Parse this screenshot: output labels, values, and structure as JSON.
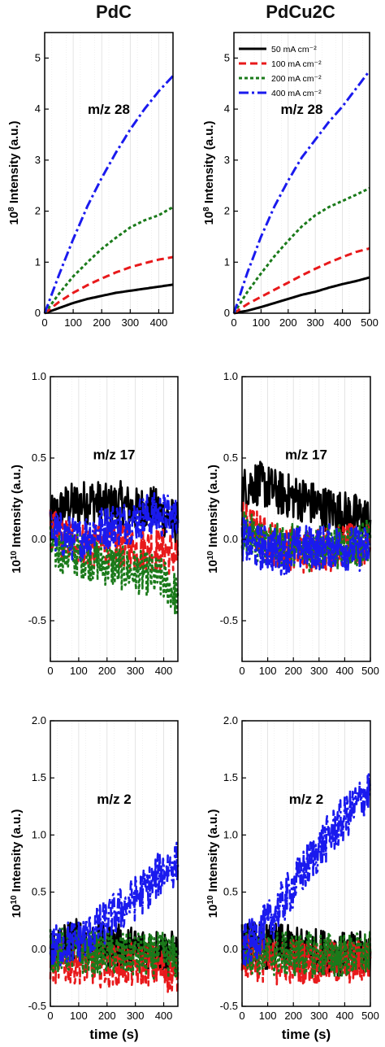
{
  "columns": [
    "PdC",
    "PdCu2C"
  ],
  "colors": {
    "50 mA cm⁻²": "#000000",
    "100 mA cm⁻²": "#e8191b",
    "200 mA cm⁻²": "#1a7a1a",
    "400 mA cm⁻²": "#1a1aee"
  },
  "chart_data": [
    {
      "type": "line",
      "panel": "PdC m/z 28",
      "annotation": "m/z 28",
      "ylabel": "10^8 Intensity (a.u.)",
      "xlabel": "",
      "xlim": [
        0,
        450
      ],
      "ylim": [
        0,
        5.5
      ],
      "xticks": [
        0,
        100,
        200,
        300,
        400
      ],
      "yticks": [
        0,
        1,
        2,
        3,
        4,
        5
      ],
      "yticklabels": [
        "0",
        "1",
        "2",
        "3",
        "4",
        "5"
      ],
      "series": [
        {
          "name": "50 mA cm⁻²",
          "style": "solid",
          "x": [
            0,
            50,
            100,
            150,
            200,
            250,
            300,
            350,
            400,
            450
          ],
          "y": [
            0,
            0.1,
            0.2,
            0.28,
            0.34,
            0.4,
            0.44,
            0.48,
            0.52,
            0.56
          ]
        },
        {
          "name": "100 mA cm⁻²",
          "style": "dash",
          "x": [
            0,
            50,
            100,
            150,
            200,
            250,
            300,
            350,
            400,
            450
          ],
          "y": [
            0,
            0.22,
            0.4,
            0.55,
            0.68,
            0.8,
            0.9,
            0.98,
            1.05,
            1.1
          ]
        },
        {
          "name": "200 mA cm⁻²",
          "style": "dot",
          "x": [
            0,
            50,
            100,
            150,
            200,
            250,
            300,
            350,
            400,
            450
          ],
          "y": [
            0,
            0.38,
            0.72,
            1.0,
            1.26,
            1.48,
            1.68,
            1.82,
            1.92,
            2.08
          ]
        },
        {
          "name": "400 mA cm⁻²",
          "style": "dashdot",
          "x": [
            0,
            50,
            100,
            150,
            200,
            250,
            300,
            350,
            400,
            450
          ],
          "y": [
            0,
            0.75,
            1.45,
            2.1,
            2.65,
            3.15,
            3.6,
            4.0,
            4.35,
            4.65
          ]
        }
      ]
    },
    {
      "type": "line",
      "panel": "PdCu2C m/z 28",
      "annotation": "m/z 28",
      "ylabel": "10^8 Intensity (a.u.)",
      "xlabel": "",
      "xlim": [
        0,
        500
      ],
      "ylim": [
        0,
        5.5
      ],
      "xticks": [
        0,
        100,
        200,
        300,
        400,
        500
      ],
      "yticks": [
        0,
        1,
        2,
        3,
        4,
        5
      ],
      "yticklabels": [
        "0",
        "1",
        "2",
        "3",
        "4",
        "5"
      ],
      "legend": {
        "position": "top-left",
        "entries": [
          "50 mA cm⁻²",
          "100 mA cm⁻²",
          "200 mA cm⁻²",
          "400 mA cm⁻²"
        ]
      },
      "series": [
        {
          "name": "50 mA cm⁻²",
          "style": "solid",
          "x": [
            0,
            50,
            100,
            150,
            200,
            250,
            300,
            350,
            400,
            450,
            500
          ],
          "y": [
            0,
            0.05,
            0.12,
            0.2,
            0.28,
            0.36,
            0.42,
            0.5,
            0.57,
            0.63,
            0.7
          ]
        },
        {
          "name": "100 mA cm⁻²",
          "style": "dash",
          "x": [
            0,
            50,
            100,
            150,
            200,
            250,
            300,
            350,
            400,
            450,
            500
          ],
          "y": [
            0,
            0.18,
            0.32,
            0.46,
            0.6,
            0.74,
            0.87,
            0.99,
            1.1,
            1.2,
            1.27
          ]
        },
        {
          "name": "200 mA cm⁻²",
          "style": "dot",
          "x": [
            0,
            50,
            100,
            150,
            200,
            250,
            300,
            350,
            400,
            450,
            500
          ],
          "y": [
            0,
            0.42,
            0.78,
            1.12,
            1.42,
            1.7,
            1.92,
            2.08,
            2.2,
            2.32,
            2.45
          ]
        },
        {
          "name": "400 mA cm⁻²",
          "style": "dashdot",
          "x": [
            0,
            50,
            100,
            150,
            200,
            250,
            300,
            350,
            400,
            450,
            500
          ],
          "y": [
            0,
            0.8,
            1.5,
            2.1,
            2.6,
            3.05,
            3.4,
            3.75,
            4.05,
            4.4,
            4.75
          ]
        }
      ]
    },
    {
      "type": "line",
      "panel": "PdC m/z 17",
      "annotation": "m/z 17",
      "ylabel": "10^10 Intensity (a.u.)",
      "xlabel": "",
      "xlim": [
        0,
        450
      ],
      "ylim": [
        -0.75,
        1.0
      ],
      "xticks": [
        0,
        100,
        200,
        300,
        400
      ],
      "yticks": [
        -0.5,
        0,
        0.5,
        1.0
      ],
      "yticklabels": [
        "-0.5",
        "0.0",
        "0.5",
        "1.0"
      ],
      "series": [
        {
          "name": "50 mA cm⁻²",
          "style": "solid",
          "noisy": true,
          "x": [
            0,
            50,
            100,
            150,
            200,
            250,
            300,
            350,
            400,
            450
          ],
          "y": [
            0.12,
            0.2,
            0.22,
            0.24,
            0.2,
            0.22,
            0.18,
            0.2,
            0.15,
            0.1
          ]
        },
        {
          "name": "100 mA cm⁻²",
          "style": "dash",
          "noisy": true,
          "x": [
            0,
            50,
            100,
            150,
            200,
            250,
            300,
            350,
            400,
            450
          ],
          "y": [
            0.05,
            0.0,
            -0.02,
            -0.05,
            -0.03,
            -0.04,
            -0.06,
            -0.05,
            -0.07,
            -0.1
          ]
        },
        {
          "name": "200 mA cm⁻²",
          "style": "dot",
          "noisy": true,
          "x": [
            0,
            50,
            100,
            150,
            200,
            250,
            300,
            350,
            400,
            450
          ],
          "y": [
            -0.05,
            -0.08,
            -0.1,
            -0.12,
            -0.15,
            -0.18,
            -0.2,
            -0.22,
            -0.25,
            -0.35
          ]
        },
        {
          "name": "400 mA cm⁻²",
          "style": "dashdot",
          "noisy": true,
          "x": [
            0,
            50,
            100,
            150,
            200,
            250,
            300,
            350,
            400,
            450
          ],
          "y": [
            0.05,
            0.02,
            0.0,
            0.05,
            0.08,
            0.1,
            0.12,
            0.15,
            0.15,
            0.12
          ]
        }
      ]
    },
    {
      "type": "line",
      "panel": "PdCu2C m/z 17",
      "annotation": "m/z 17",
      "ylabel": "10^10 Intensity (a.u.)",
      "xlabel": "",
      "xlim": [
        0,
        500
      ],
      "ylim": [
        -0.75,
        1.0
      ],
      "xticks": [
        0,
        100,
        200,
        300,
        400,
        500
      ],
      "yticks": [
        -0.5,
        0,
        0.5,
        1.0
      ],
      "yticklabels": [
        "-0.5",
        "0.0",
        "0.5",
        "1.0"
      ],
      "series": [
        {
          "name": "50 mA cm⁻²",
          "style": "solid",
          "noisy": true,
          "x": [
            0,
            50,
            100,
            150,
            200,
            250,
            300,
            350,
            400,
            450,
            500
          ],
          "y": [
            0.3,
            0.35,
            0.32,
            0.28,
            0.26,
            0.24,
            0.2,
            0.18,
            0.16,
            0.14,
            0.12
          ]
        },
        {
          "name": "100 mA cm⁻²",
          "style": "dash",
          "noisy": true,
          "x": [
            0,
            50,
            100,
            150,
            200,
            250,
            300,
            350,
            400,
            450,
            500
          ],
          "y": [
            0.1,
            0.05,
            0.0,
            -0.05,
            -0.05,
            -0.08,
            -0.05,
            -0.06,
            -0.04,
            -0.05,
            -0.03
          ]
        },
        {
          "name": "200 mA cm⁻²",
          "style": "dot",
          "noisy": true,
          "x": [
            0,
            50,
            100,
            150,
            200,
            250,
            300,
            350,
            400,
            450,
            500
          ],
          "y": [
            0.05,
            0.0,
            -0.02,
            -0.05,
            -0.04,
            -0.06,
            -0.05,
            -0.04,
            -0.05,
            -0.03,
            0.0
          ]
        },
        {
          "name": "400 mA cm⁻²",
          "style": "dashdot",
          "noisy": true,
          "x": [
            0,
            50,
            100,
            150,
            200,
            250,
            300,
            350,
            400,
            450,
            500
          ],
          "y": [
            0.0,
            -0.05,
            -0.05,
            -0.08,
            -0.06,
            -0.05,
            -0.05,
            -0.04,
            -0.05,
            -0.06,
            -0.05
          ]
        }
      ]
    },
    {
      "type": "line",
      "panel": "PdC m/z 2",
      "annotation": "m/z 2",
      "ylabel": "10^10 Intensity (a.u.)",
      "xlabel": "time (s)",
      "xlim": [
        0,
        450
      ],
      "ylim": [
        -0.5,
        2.0
      ],
      "xticks": [
        0,
        100,
        200,
        300,
        400
      ],
      "yticks": [
        -0.5,
        0,
        0.5,
        1.0,
        1.5,
        2.0
      ],
      "yticklabels": [
        "-0.5",
        "0.0",
        "0.5",
        "1.0",
        "1.5",
        "2.0"
      ],
      "series": [
        {
          "name": "50 mA cm⁻²",
          "style": "solid",
          "noisy": true,
          "x": [
            0,
            50,
            100,
            150,
            200,
            250,
            300,
            350,
            400,
            450
          ],
          "y": [
            0.0,
            0.05,
            0.08,
            0.05,
            0.03,
            0.02,
            0.0,
            0.0,
            -0.02,
            -0.05
          ]
        },
        {
          "name": "100 mA cm⁻²",
          "style": "dash",
          "noisy": true,
          "x": [
            0,
            50,
            100,
            150,
            200,
            250,
            300,
            350,
            400,
            450
          ],
          "y": [
            -0.1,
            -0.12,
            -0.1,
            -0.12,
            -0.15,
            -0.12,
            -0.15,
            -0.12,
            -0.18,
            -0.2
          ]
        },
        {
          "name": "200 mA cm⁻²",
          "style": "dot",
          "noisy": true,
          "x": [
            0,
            50,
            100,
            150,
            200,
            250,
            300,
            350,
            400,
            450
          ],
          "y": [
            -0.02,
            0.0,
            -0.02,
            -0.04,
            -0.03,
            -0.05,
            -0.05,
            -0.06,
            -0.05,
            -0.08
          ]
        },
        {
          "name": "400 mA cm⁻²",
          "style": "dashdot",
          "noisy": true,
          "x": [
            0,
            50,
            100,
            150,
            200,
            250,
            300,
            350,
            400,
            450
          ],
          "y": [
            0.0,
            0.05,
            0.08,
            0.15,
            0.25,
            0.35,
            0.45,
            0.55,
            0.7,
            0.75
          ]
        }
      ]
    },
    {
      "type": "line",
      "panel": "PdCu2C m/z 2",
      "annotation": "m/z 2",
      "ylabel": "10^10 Intensity (a.u.)",
      "xlabel": "time (s)",
      "xlim": [
        0,
        500
      ],
      "ylim": [
        -0.5,
        2.0
      ],
      "xticks": [
        0,
        100,
        200,
        300,
        400,
        500
      ],
      "yticks": [
        -0.5,
        0,
        0.5,
        1.0,
        1.5,
        2.0
      ],
      "yticklabels": [
        "-0.5",
        "0.0",
        "0.5",
        "1.0",
        "1.5",
        "2.0"
      ],
      "series": [
        {
          "name": "50 mA cm⁻²",
          "style": "solid",
          "noisy": true,
          "x": [
            0,
            50,
            100,
            150,
            200,
            250,
            300,
            350,
            400,
            450,
            500
          ],
          "y": [
            0.05,
            0.05,
            0.02,
            0.03,
            0.0,
            0.0,
            -0.02,
            -0.02,
            -0.05,
            -0.05,
            -0.02
          ]
        },
        {
          "name": "100 mA cm⁻²",
          "style": "dash",
          "noisy": true,
          "x": [
            0,
            50,
            100,
            150,
            200,
            250,
            300,
            350,
            400,
            450,
            500
          ],
          "y": [
            -0.05,
            -0.08,
            -0.1,
            -0.12,
            -0.1,
            -0.1,
            -0.12,
            -0.1,
            -0.12,
            -0.1,
            -0.08
          ]
        },
        {
          "name": "200 mA cm⁻²",
          "style": "dot",
          "noisy": true,
          "x": [
            0,
            50,
            100,
            150,
            200,
            250,
            300,
            350,
            400,
            450,
            500
          ],
          "y": [
            0.0,
            -0.02,
            -0.05,
            -0.03,
            -0.05,
            -0.04,
            -0.05,
            -0.05,
            -0.06,
            -0.05,
            -0.04
          ]
        },
        {
          "name": "400 mA cm⁻²",
          "style": "dashdot",
          "noisy": true,
          "x": [
            0,
            50,
            100,
            150,
            200,
            250,
            300,
            350,
            400,
            450,
            500
          ],
          "y": [
            0.0,
            0.1,
            0.22,
            0.38,
            0.55,
            0.72,
            0.88,
            1.02,
            1.15,
            1.28,
            1.4
          ]
        }
      ]
    }
  ]
}
